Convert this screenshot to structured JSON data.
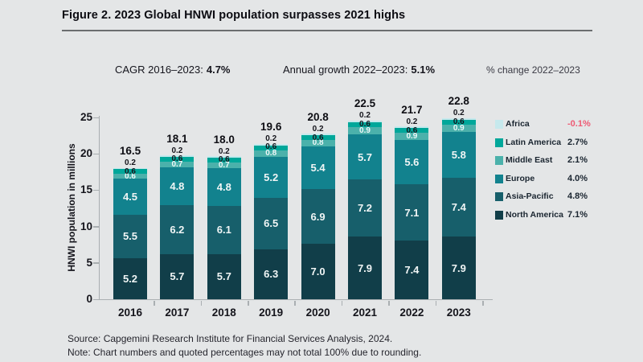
{
  "header": {
    "title": "Figure 2. 2023 Global HNWI population surpasses 2021 highs"
  },
  "subtitles": {
    "cagr_label": "CAGR 2016–2023:",
    "cagr_value": "4.7%",
    "growth_label": "Annual growth 2022–2023:",
    "growth_value": "5.1%"
  },
  "legend": {
    "header": "% change 2022–2023",
    "negative_color": "#ee5a74"
  },
  "chart_data": {
    "type": "bar",
    "stacked": true,
    "title": "Figure 2. 2023 Global HNWI population surpasses 2021 highs",
    "ylabel": "HNWI population in millions",
    "ylim": [
      0,
      25
    ],
    "yticks": [
      0,
      5,
      10,
      15,
      20,
      25
    ],
    "grid": false,
    "legend_position": "right",
    "categories": [
      "2016",
      "2017",
      "2018",
      "2019",
      "2020",
      "2021",
      "2022",
      "2023"
    ],
    "totals": [
      16.5,
      18.1,
      18.0,
      19.6,
      20.8,
      22.5,
      21.7,
      22.8
    ],
    "series": [
      {
        "name": "North America",
        "color": "#113e49",
        "pct_change": "7.1%",
        "values": [
          5.2,
          5.7,
          5.7,
          6.3,
          7.0,
          7.9,
          7.4,
          7.9
        ]
      },
      {
        "name": "Asia-Pacific",
        "color": "#175f6b",
        "pct_change": "4.8%",
        "values": [
          5.5,
          6.2,
          6.1,
          6.5,
          6.9,
          7.2,
          7.1,
          7.4
        ]
      },
      {
        "name": "Europe",
        "color": "#12828e",
        "pct_change": "4.0%",
        "values": [
          4.5,
          4.8,
          4.8,
          5.2,
          5.4,
          5.7,
          5.6,
          5.8
        ]
      },
      {
        "name": "Middle East",
        "color": "#4bb1ab",
        "pct_change": "2.1%",
        "values": [
          0.6,
          0.7,
          0.7,
          0.8,
          0.8,
          0.9,
          0.9,
          0.9
        ]
      },
      {
        "name": "Latin America",
        "color": "#00a79a",
        "pct_change": "2.7%",
        "values": [
          0.6,
          0.6,
          0.6,
          0.6,
          0.6,
          0.6,
          0.6,
          0.6
        ]
      },
      {
        "name": "Africa",
        "color": "#c6e9ed",
        "pct_change": "-0.1%",
        "values": [
          0.2,
          0.2,
          0.2,
          0.2,
          0.2,
          0.2,
          0.2,
          0.2
        ]
      }
    ]
  },
  "footer": {
    "source": "Source: Capgemini Research Institute for Financial Services Analysis, 2024.",
    "note": "Note: Chart numbers and quoted percentages may not total 100% due to rounding."
  }
}
